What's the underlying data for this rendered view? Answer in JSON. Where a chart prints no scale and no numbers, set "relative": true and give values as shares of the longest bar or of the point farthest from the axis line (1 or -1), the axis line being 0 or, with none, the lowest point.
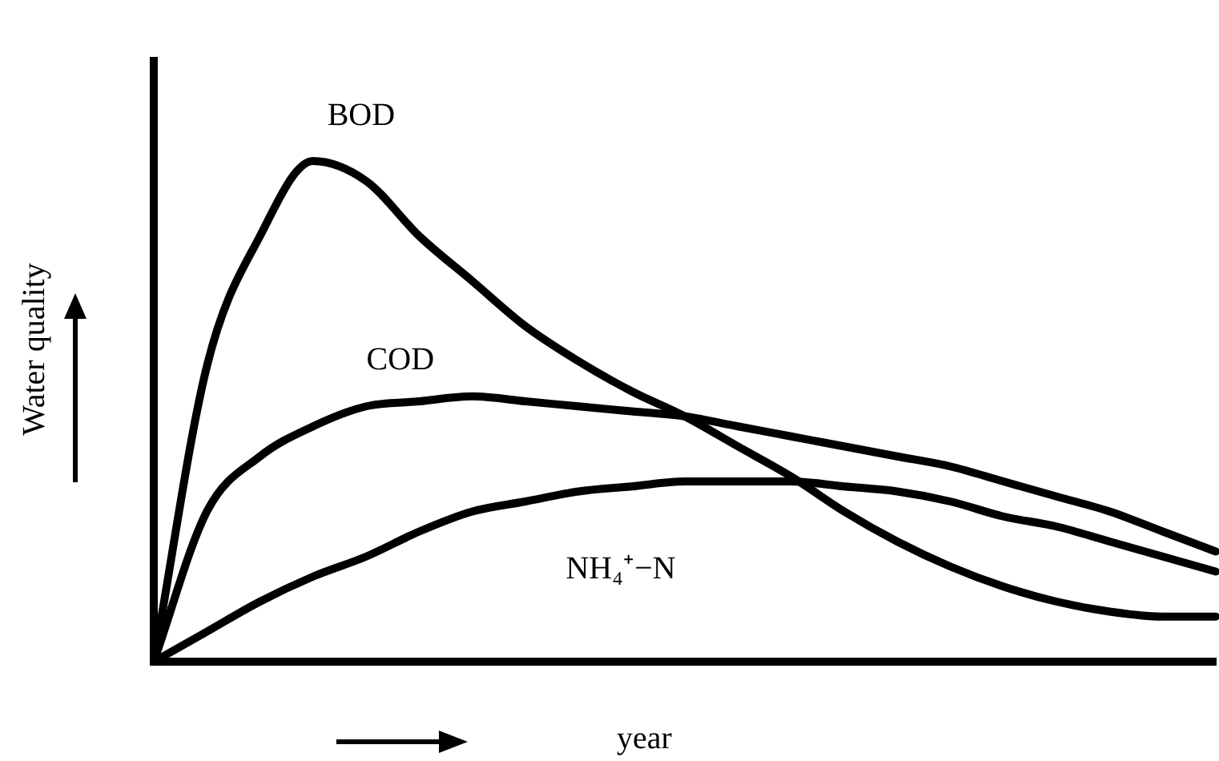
{
  "chart_data": {
    "type": "line",
    "relative": true,
    "xlabel": "year",
    "ylabel": "Water quality",
    "legend": false,
    "grid": false,
    "marker": "none",
    "line_style": "solid",
    "categories": [
      null,
      null,
      null,
      null,
      null,
      null,
      null,
      null,
      null,
      null,
      null,
      null,
      null,
      null,
      null,
      null,
      null,
      null,
      null,
      null,
      null
    ],
    "series": [
      {
        "name": "BOD",
        "color": "#000000",
        "values": [
          0,
          0.59,
          0.85,
          1,
          0.96,
          0.85,
          0.76,
          0.67,
          0.6,
          0.54,
          0.49,
          0.43,
          0.37,
          0.3,
          0.24,
          0.19,
          0.15,
          0.12,
          0.1,
          0.09,
          0.09
        ]
      },
      {
        "name": "COD",
        "color": "#000000",
        "values": [
          0,
          0.3,
          0.41,
          0.47,
          0.51,
          0.52,
          0.53,
          0.52,
          0.51,
          0.5,
          0.49,
          0.47,
          0.45,
          0.43,
          0.41,
          0.39,
          0.36,
          0.33,
          0.3,
          0.26,
          0.22
        ]
      },
      {
        "name": "NH₄⁺−N",
        "color": "#000000",
        "values": [
          0,
          0.06,
          0.12,
          0.17,
          0.21,
          0.26,
          0.3,
          0.32,
          0.34,
          0.35,
          0.36,
          0.36,
          0.36,
          0.35,
          0.34,
          0.32,
          0.29,
          0.27,
          0.24,
          0.21,
          0.18
        ]
      }
    ]
  }
}
